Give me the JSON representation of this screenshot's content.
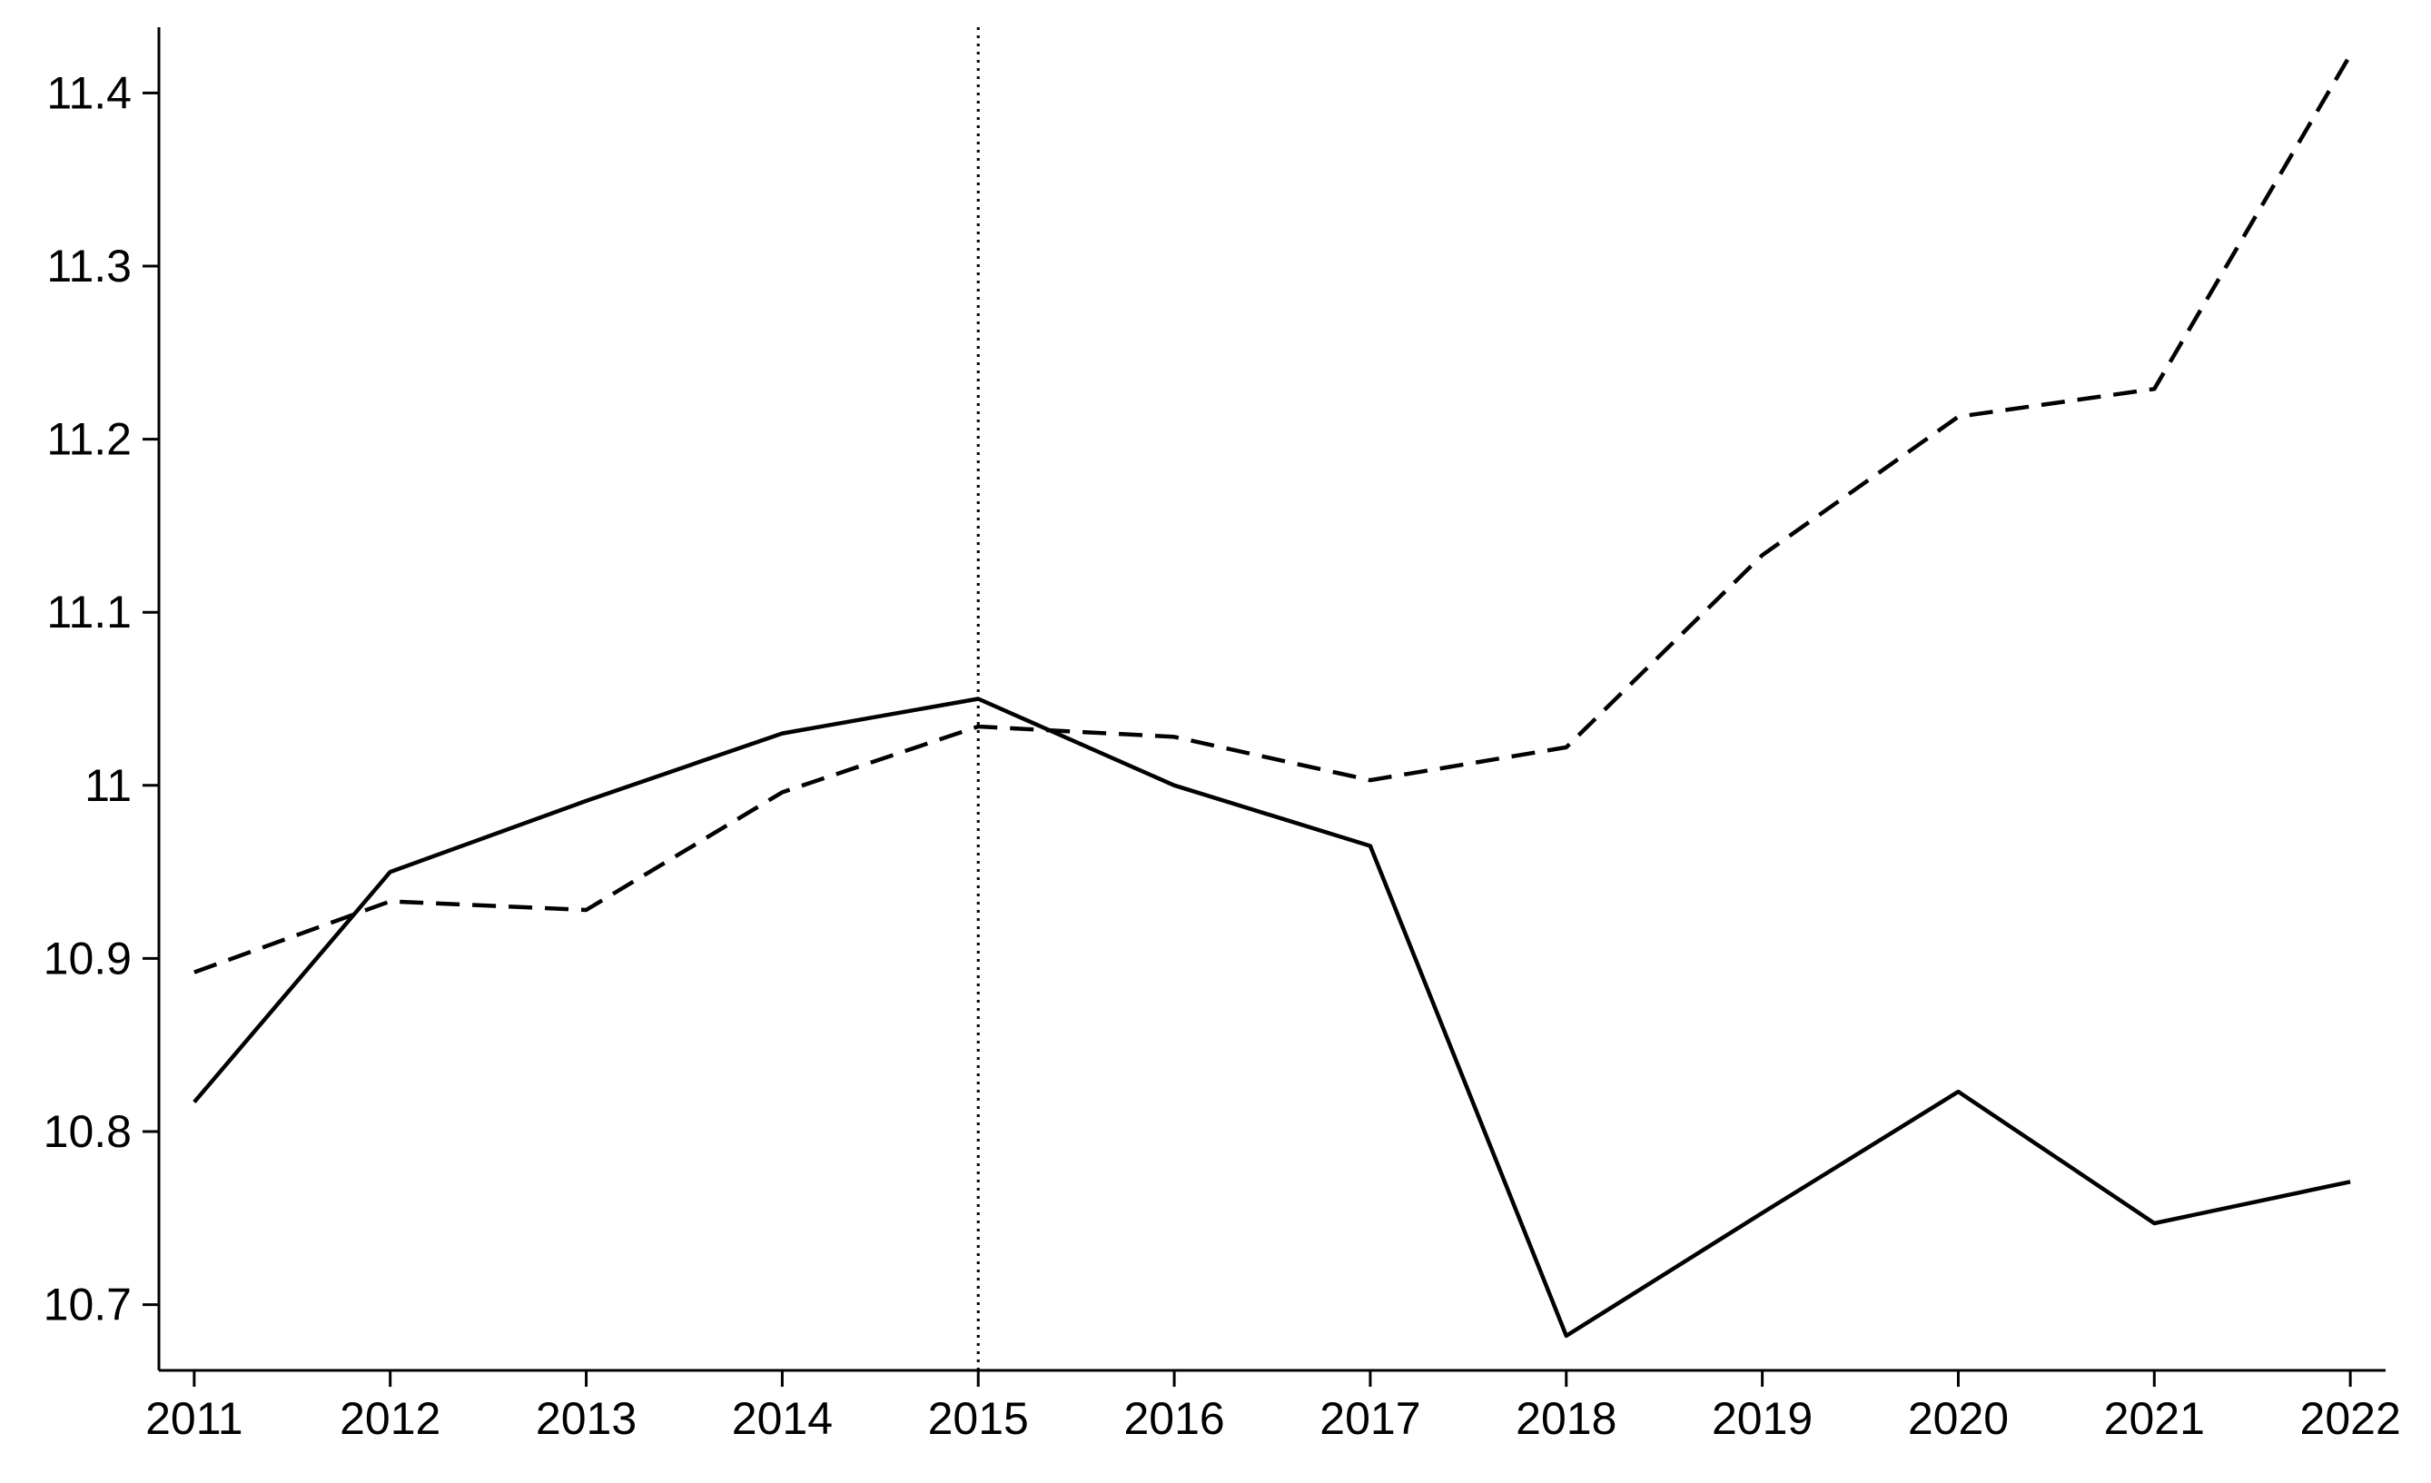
{
  "chart_data": {
    "type": "line",
    "title": "",
    "xlabel": "",
    "ylabel": "",
    "x": [
      2011,
      2012,
      2013,
      2014,
      2015,
      2016,
      2017,
      2018,
      2019,
      2020,
      2021,
      2022
    ],
    "x_tick_labels": [
      "2011",
      "2012",
      "2013",
      "2014",
      "2015",
      "2016",
      "2017",
      "2018",
      "2019",
      "2020",
      "2021",
      "2022"
    ],
    "y_ticks": [
      10.7,
      10.8,
      10.9,
      11,
      11.1,
      11.2,
      11.3,
      11.4
    ],
    "y_tick_labels": [
      "10.7",
      "10.8",
      "10.9",
      "11",
      "11.1",
      "11.2",
      "11.3",
      "11.4"
    ],
    "xlim": [
      2010.82,
      2022.18
    ],
    "ylim": [
      10.662,
      11.438
    ],
    "grid": false,
    "series": [
      {
        "style": "solid",
        "color": "#000000",
        "values": [
          10.817,
          10.95,
          10.991,
          11.03,
          11.05,
          11.0,
          10.965,
          10.682,
          10.753,
          10.823,
          10.747,
          10.771
        ]
      },
      {
        "style": "dashed",
        "color": "#000000",
        "values": [
          10.892,
          10.933,
          10.928,
          10.996,
          11.034,
          11.028,
          11.003,
          11.022,
          11.133,
          11.213,
          11.229,
          11.422
        ]
      }
    ],
    "reference_lines": [
      {
        "axis": "x",
        "value": 2015,
        "style": "dotted",
        "color": "#000000"
      }
    ]
  }
}
